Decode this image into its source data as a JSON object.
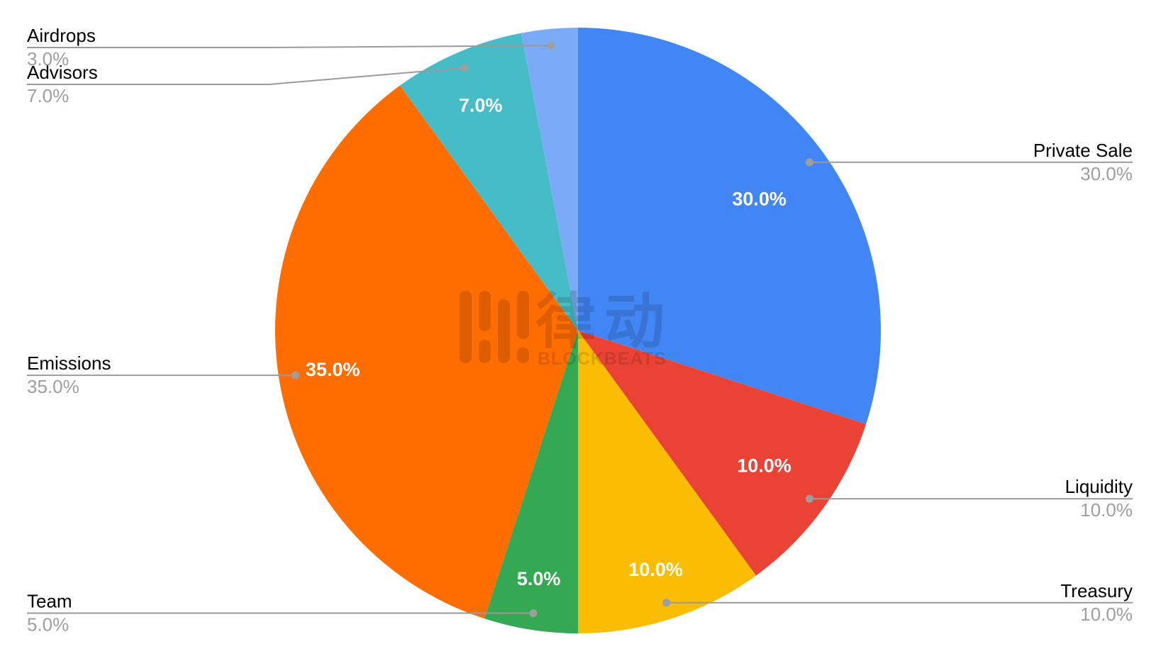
{
  "background": "#ffffff",
  "watermark": {
    "icon": "blockbeats-bars-icon",
    "title": "律动",
    "subtitle": "BLOCKBEATS"
  },
  "chart_data": {
    "type": "pie",
    "title": "",
    "categories": [
      "Private Sale",
      "Liquidity",
      "Treasury",
      "Team",
      "Emissions",
      "Advisors",
      "Airdrops"
    ],
    "values": [
      30.0,
      10.0,
      10.0,
      5.0,
      35.0,
      7.0,
      3.0
    ],
    "unit": "%",
    "start_angle_deg": 0,
    "direction": "clockwise",
    "legend_position": "callouts",
    "slice_text_color": "#ffffff",
    "callout_name_color": "#000000",
    "callout_value_color": "#9e9e9e",
    "leader_line_color": "#9a9a9a",
    "slices": [
      {
        "label": "Private Sale",
        "value": 30.0,
        "pct_label": "30.0%",
        "color": "#4285F4",
        "callout_side": "right",
        "inside_label_shown": true
      },
      {
        "label": "Liquidity",
        "value": 10.0,
        "pct_label": "10.0%",
        "color": "#EA4335",
        "callout_side": "right",
        "inside_label_shown": true
      },
      {
        "label": "Treasury",
        "value": 10.0,
        "pct_label": "10.0%",
        "color": "#FBBC04",
        "callout_side": "right",
        "inside_label_shown": true
      },
      {
        "label": "Team",
        "value": 5.0,
        "pct_label": "5.0%",
        "color": "#34A853",
        "callout_side": "left",
        "inside_label_shown": true
      },
      {
        "label": "Emissions",
        "value": 35.0,
        "pct_label": "35.0%",
        "color": "#FF6D01",
        "callout_side": "left",
        "inside_label_shown": true
      },
      {
        "label": "Advisors",
        "value": 7.0,
        "pct_label": "7.0%",
        "color": "#46BDC6",
        "callout_side": "left",
        "inside_label_shown": true
      },
      {
        "label": "Airdrops",
        "value": 3.0,
        "pct_label": "3.0%",
        "color": "#7BAAF7",
        "callout_side": "left",
        "inside_label_shown": false
      }
    ]
  }
}
